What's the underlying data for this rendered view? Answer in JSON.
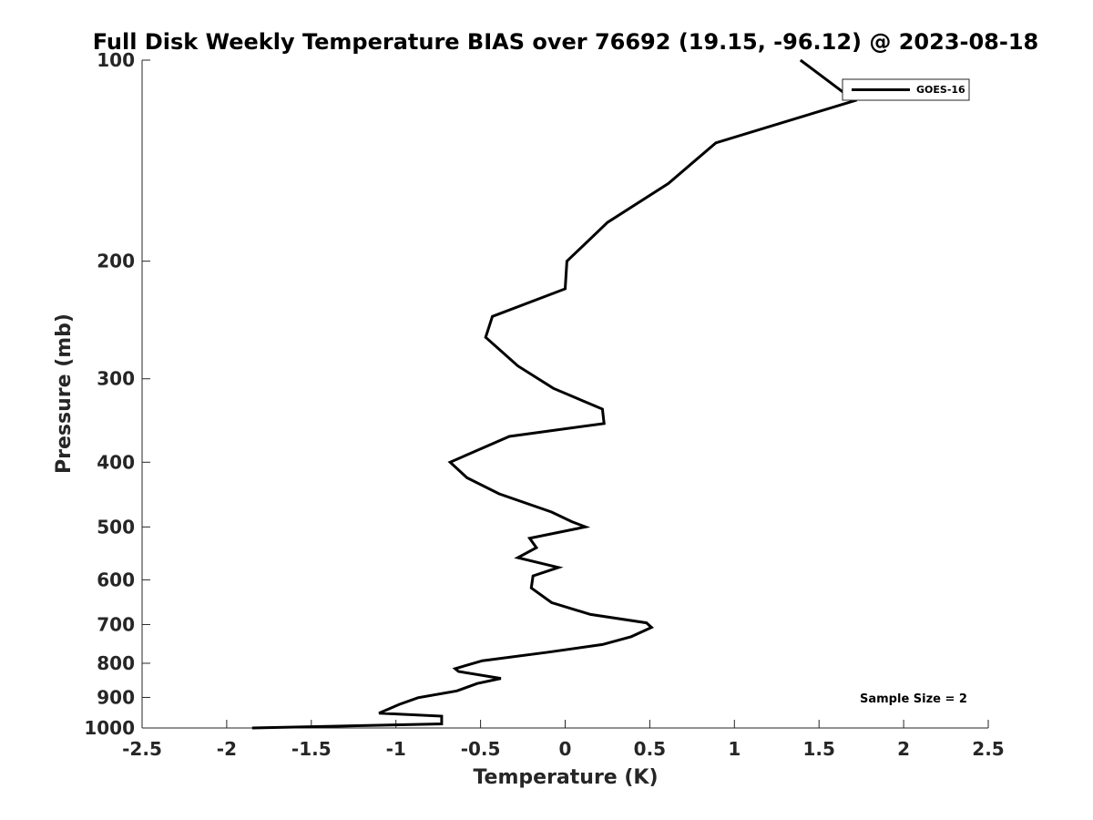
{
  "chart_data": {
    "type": "line",
    "title": "Full Disk Weekly Temperature BIAS over 76692 (19.15, -96.12) @ 2023-08-18",
    "xlabel": "Temperature (K)",
    "ylabel": "Pressure (mb)",
    "xlim": [
      -2.5,
      2.5
    ],
    "ylim": [
      100,
      1000
    ],
    "y_scale": "log",
    "y_reversed": true,
    "grid": false,
    "xticks": [
      -2.5,
      -2,
      -1.5,
      -1,
      -0.5,
      0,
      0.5,
      1,
      1.5,
      2,
      2.5
    ],
    "xtick_labels": [
      "-2.5",
      "-2",
      "-1.5",
      "-1",
      "-0.5",
      "0",
      "0.5",
      "1",
      "1.5",
      "2",
      "2.5"
    ],
    "yticks": [
      100,
      200,
      300,
      400,
      500,
      600,
      700,
      800,
      900,
      1000
    ],
    "ytick_labels": [
      "100",
      "200",
      "300",
      "400",
      "500",
      "600",
      "700",
      "800",
      "900",
      "1000"
    ],
    "legend_position": "top-right",
    "annotation": "Sample Size = 2",
    "series": [
      {
        "name": "GOES-16",
        "color": "#000000",
        "x": [
          1.39,
          1.71,
          0.89,
          0.61,
          0.25,
          0.01,
          0.0,
          -0.43,
          -0.47,
          -0.28,
          -0.07,
          0.22,
          0.23,
          -0.33,
          -0.68,
          -0.58,
          -0.39,
          -0.08,
          0.04,
          0.12,
          -0.21,
          -0.17,
          -0.28,
          -0.04,
          -0.19,
          -0.2,
          -0.08,
          0.15,
          0.48,
          0.51,
          0.39,
          0.22,
          -0.1,
          -0.49,
          -0.65,
          -0.63,
          -0.38,
          -0.52,
          -0.64,
          -0.87,
          -0.98,
          -1.1,
          -0.73,
          -0.73,
          -1.85
        ],
        "y": [
          100,
          115,
          133,
          153,
          175,
          200,
          220,
          242,
          260,
          287,
          310,
          333,
          350,
          366,
          400,
          422,
          446,
          475,
          491,
          500,
          520,
          537,
          556,
          575,
          592,
          617,
          649,
          676,
          696,
          707,
          730,
          750,
          770,
          793,
          815,
          823,
          843,
          858,
          880,
          901,
          922,
          950,
          960,
          986,
          1000
        ]
      }
    ]
  }
}
